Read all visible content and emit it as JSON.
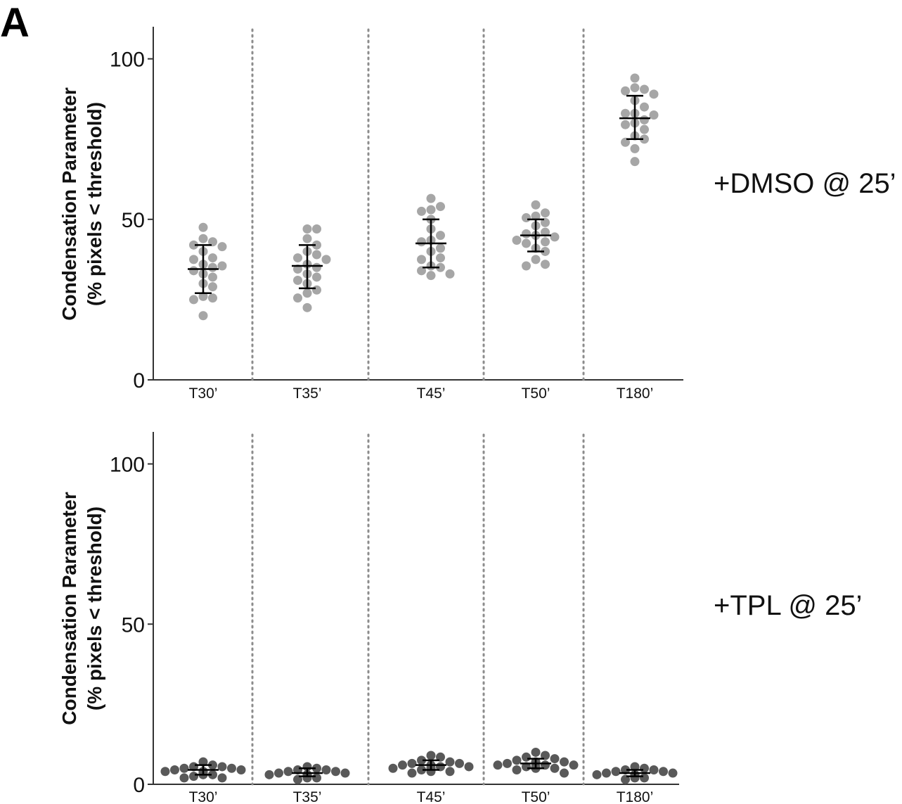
{
  "figure": {
    "panel_letter": "A"
  },
  "chart_data": [
    {
      "type": "scatter",
      "subtype": "dot-plot-with-mean-and-error-bars",
      "condition_label": "+DMSO @ 25’",
      "ylabel_line1": "Condensation Parameter",
      "ylabel_line2": "(% pixels < threshold)",
      "xlabel": "",
      "ylim": [
        0,
        110
      ],
      "yticks": [
        0,
        50,
        100
      ],
      "dot_color": "#a6a6a6",
      "categories": [
        "T30’",
        "T35’",
        "T45’",
        "T50’",
        "T180’"
      ],
      "groups": [
        {
          "category": "T30’",
          "mean": 34.5,
          "err_low": 27,
          "err_high": 42,
          "values": [
            47.5,
            44,
            43,
            42,
            41.5,
            40,
            38,
            37.5,
            36,
            35.5,
            35,
            34,
            33,
            32,
            30,
            29,
            26,
            25.5,
            25,
            20
          ]
        },
        {
          "category": "T35’",
          "mean": 35.5,
          "err_low": 28.5,
          "err_high": 42,
          "values": [
            47,
            47,
            44,
            42,
            40,
            39,
            38,
            37.5,
            36,
            35,
            34.5,
            33,
            32,
            31,
            30,
            28,
            27,
            25.5,
            22.5
          ]
        },
        {
          "category": "T45’",
          "mean": 42.5,
          "err_low": 35,
          "err_high": 50,
          "values": [
            56.5,
            54,
            53,
            52.5,
            50,
            47,
            45,
            43.5,
            43,
            41,
            40,
            38,
            37.5,
            35.5,
            35,
            34,
            33,
            32.5
          ]
        },
        {
          "category": "T50’",
          "mean": 45,
          "err_low": 40,
          "err_high": 50,
          "values": [
            54.5,
            52,
            51,
            50.5,
            49,
            48,
            46,
            45.5,
            45,
            44.5,
            43.5,
            43,
            42.5,
            41,
            40,
            37.5,
            36,
            35.5
          ]
        },
        {
          "category": "T180’",
          "mean": 81.5,
          "err_low": 75,
          "err_high": 88.5,
          "values": [
            94,
            91,
            90.5,
            90,
            89,
            87,
            85,
            83,
            83,
            82.5,
            81,
            80,
            79.5,
            78,
            76,
            75,
            74,
            72,
            68
          ]
        }
      ]
    },
    {
      "type": "scatter",
      "subtype": "dot-plot-with-mean-and-error-bars",
      "condition_label": "+TPL @ 25’",
      "ylabel_line1": "Condensation Parameter",
      "ylabel_line2": "(% pixels < threshold)",
      "xlabel": "",
      "ylim": [
        0,
        110
      ],
      "yticks": [
        0,
        50,
        100
      ],
      "dot_color": "#595959",
      "categories": [
        "T30’",
        "T35’",
        "T45’",
        "T50’",
        "T180’"
      ],
      "groups": [
        {
          "category": "T30’",
          "mean": 4.5,
          "err_low": 3,
          "err_high": 6,
          "values": [
            7,
            6,
            5.5,
            5.5,
            5,
            5,
            4.5,
            4.5,
            4,
            4,
            4,
            3.5,
            3.5,
            3,
            3,
            2.5,
            2,
            2
          ]
        },
        {
          "category": "T35’",
          "mean": 3.5,
          "err_low": 2.5,
          "err_high": 5,
          "values": [
            5.5,
            5,
            4.5,
            4.5,
            4,
            4,
            3.5,
            3.5,
            3,
            3,
            3,
            2.5,
            2.5,
            2,
            2,
            1.5
          ]
        },
        {
          "category": "T45’",
          "mean": 6,
          "err_low": 4.5,
          "err_high": 7.5,
          "values": [
            9,
            8.5,
            7.5,
            7,
            6.5,
            6.5,
            6,
            6,
            5.5,
            5.5,
            5,
            5,
            5,
            4.5,
            4,
            4,
            3.5
          ]
        },
        {
          "category": "T50’",
          "mean": 6.5,
          "err_low": 5,
          "err_high": 8,
          "values": [
            10,
            9,
            8.5,
            8,
            7.5,
            7,
            7,
            6.5,
            6,
            6,
            6,
            5.5,
            5.5,
            5,
            5,
            4.5,
            3.5
          ]
        },
        {
          "category": "T180’",
          "mean": 3.5,
          "err_low": 2.5,
          "err_high": 4.5,
          "values": [
            5.5,
            5,
            4.5,
            4.5,
            4,
            4,
            3.5,
            3.5,
            3,
            3,
            3,
            2.5,
            2.5,
            2,
            2,
            1.5
          ]
        }
      ]
    }
  ]
}
